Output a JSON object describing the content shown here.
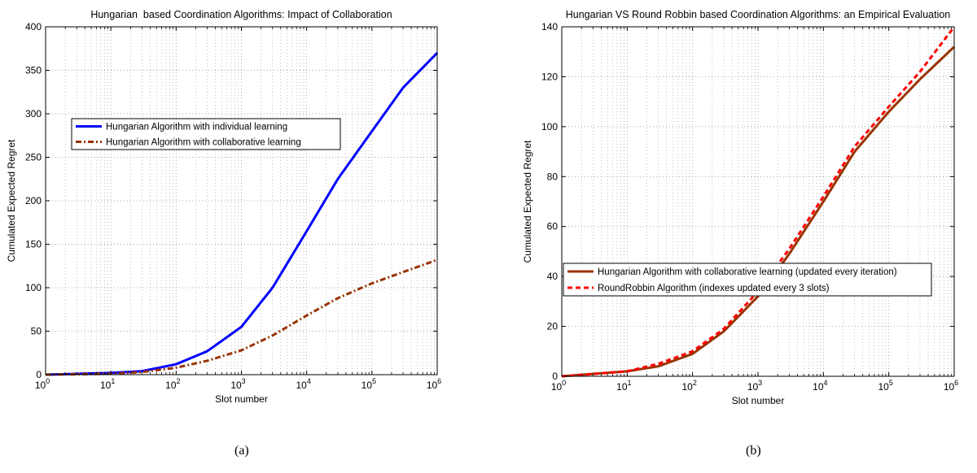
{
  "captions": [
    "(a)",
    "(b)"
  ],
  "chart_data": [
    {
      "type": "line",
      "title": "Hungarian  based Coordination Algorithms: Impact of Collaboration",
      "xlabel": "Slot number",
      "ylabel": "Cumulated Expected Regret",
      "xscale": "log",
      "xlim": [
        1,
        1000000
      ],
      "ylim": [
        0,
        400
      ],
      "xticks": [
        1,
        10,
        100,
        1000,
        10000,
        100000,
        1000000
      ],
      "yticks": [
        0,
        50,
        100,
        150,
        200,
        250,
        300,
        350,
        400
      ],
      "grid": true,
      "legend_position": "upper-left",
      "series": [
        {
          "name": "Hungarian Algorithm with individual learning",
          "color": "#0000ff",
          "style": "solid",
          "x": [
            1,
            10,
            30,
            100,
            300,
            1000,
            3000,
            10000,
            30000,
            100000,
            300000,
            1000000
          ],
          "y": [
            0,
            2,
            4,
            12,
            27,
            55,
            100,
            165,
            225,
            280,
            330,
            370
          ]
        },
        {
          "name": "Hungarian Algorithm with collaborative learning",
          "color": "#993300",
          "style": "dashdot",
          "x": [
            1,
            10,
            30,
            100,
            300,
            1000,
            3000,
            10000,
            30000,
            100000,
            300000,
            1000000
          ],
          "y": [
            0,
            1,
            3,
            8,
            16,
            28,
            45,
            68,
            88,
            105,
            118,
            132
          ]
        }
      ]
    },
    {
      "type": "line",
      "title": "Hungarian VS Round Robbin based Coordination Algorithms: an Empirical Evaluation",
      "xlabel": "Slot number",
      "ylabel": "Cumulated Expected Regret",
      "xscale": "log",
      "xlim": [
        1,
        1000000
      ],
      "ylim": [
        0,
        140
      ],
      "xticks": [
        1,
        10,
        100,
        1000,
        10000,
        100000,
        1000000
      ],
      "yticks": [
        0,
        20,
        40,
        60,
        80,
        100,
        120,
        140
      ],
      "grid": true,
      "legend_position": "lower-center",
      "series": [
        {
          "name": "Hungarian Algorithm with collaborative learning (updated every iteration)",
          "color": "#993300",
          "style": "solid",
          "x": [
            1,
            10,
            30,
            100,
            300,
            1000,
            3000,
            10000,
            30000,
            100000,
            300000,
            1000000
          ],
          "y": [
            0,
            2,
            4,
            9,
            18,
            32,
            49,
            70,
            90,
            106,
            119,
            132
          ]
        },
        {
          "name": "RoundRobbin Algorithm (indexes updated every 3 slots)",
          "color": "#ff0000",
          "style": "dashed",
          "x": [
            1,
            10,
            30,
            100,
            300,
            1000,
            3000,
            10000,
            30000,
            100000,
            300000,
            1000000
          ],
          "y": [
            0,
            2,
            5,
            10,
            19,
            34,
            51,
            72,
            92,
            108,
            122,
            140
          ]
        }
      ]
    }
  ]
}
